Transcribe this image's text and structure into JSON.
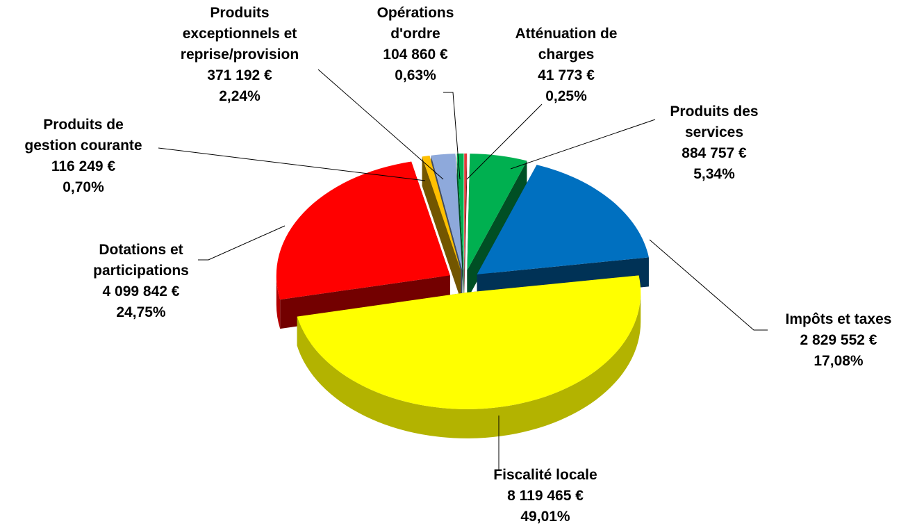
{
  "chart_data": {
    "type": "pie",
    "categories": [
      "Atténuation de\ncharges",
      "Produits des\nservices",
      "Impôts et taxes",
      "Fiscalité locale",
      "Dotations et\nparticipations",
      "Produits de\ngestion courante",
      "Produits\nexceptionnels et\nreprise/provision",
      "Opérations\nd'ordre"
    ],
    "values": [
      41773,
      884757,
      2829552,
      8119465,
      4099842,
      116249,
      371192,
      104860
    ],
    "value_labels": [
      "41 773 €",
      "884 757 €",
      "2 829 552 €",
      "8 119 465 €",
      "4 099 842 €",
      "116 249 €",
      "371 192 €",
      "104 860 €"
    ],
    "percents": [
      0.25,
      5.34,
      17.08,
      49.01,
      24.75,
      0.7,
      2.24,
      0.63
    ],
    "percent_labels": [
      "0,25%",
      "5,34%",
      "17,08%",
      "49,01%",
      "24,75%",
      "0,70%",
      "2,24%",
      "0,63%"
    ],
    "colors": [
      "#e03a3a",
      "#00b050",
      "#0070c0",
      "#ffff00",
      "#ff0000",
      "#ffc000",
      "#8ea9db",
      "#00b050"
    ]
  }
}
